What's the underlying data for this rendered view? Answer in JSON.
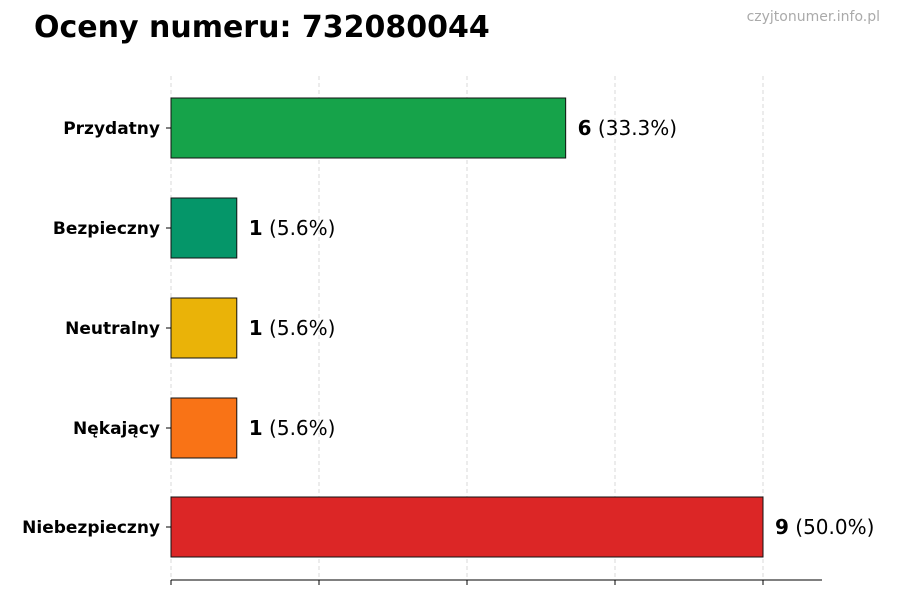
{
  "title": "Oceny numeru: 732080044",
  "watermark": "czyjtonumer.info.pl",
  "chart_data": {
    "type": "bar",
    "orientation": "horizontal",
    "title": "Oceny numeru: 732080044",
    "xlabel": "",
    "ylabel": "",
    "xlim": [
      0,
      11
    ],
    "grid": "vertical dashed",
    "categories": [
      "Przydatny",
      "Bezpieczny",
      "Neutralny",
      "Nękający",
      "Niebezpieczny"
    ],
    "values": [
      6,
      1,
      1,
      1,
      9
    ],
    "percent_labels": [
      "(33.3%)",
      "(5.6%)",
      "(5.6%)",
      "(5.6%)",
      "(50.0%)"
    ],
    "value_labels": [
      "6",
      "1",
      "1",
      "1",
      "9"
    ],
    "colors": [
      "#16a34a",
      "#059669",
      "#eab308",
      "#f97316",
      "#dc2626"
    ]
  }
}
